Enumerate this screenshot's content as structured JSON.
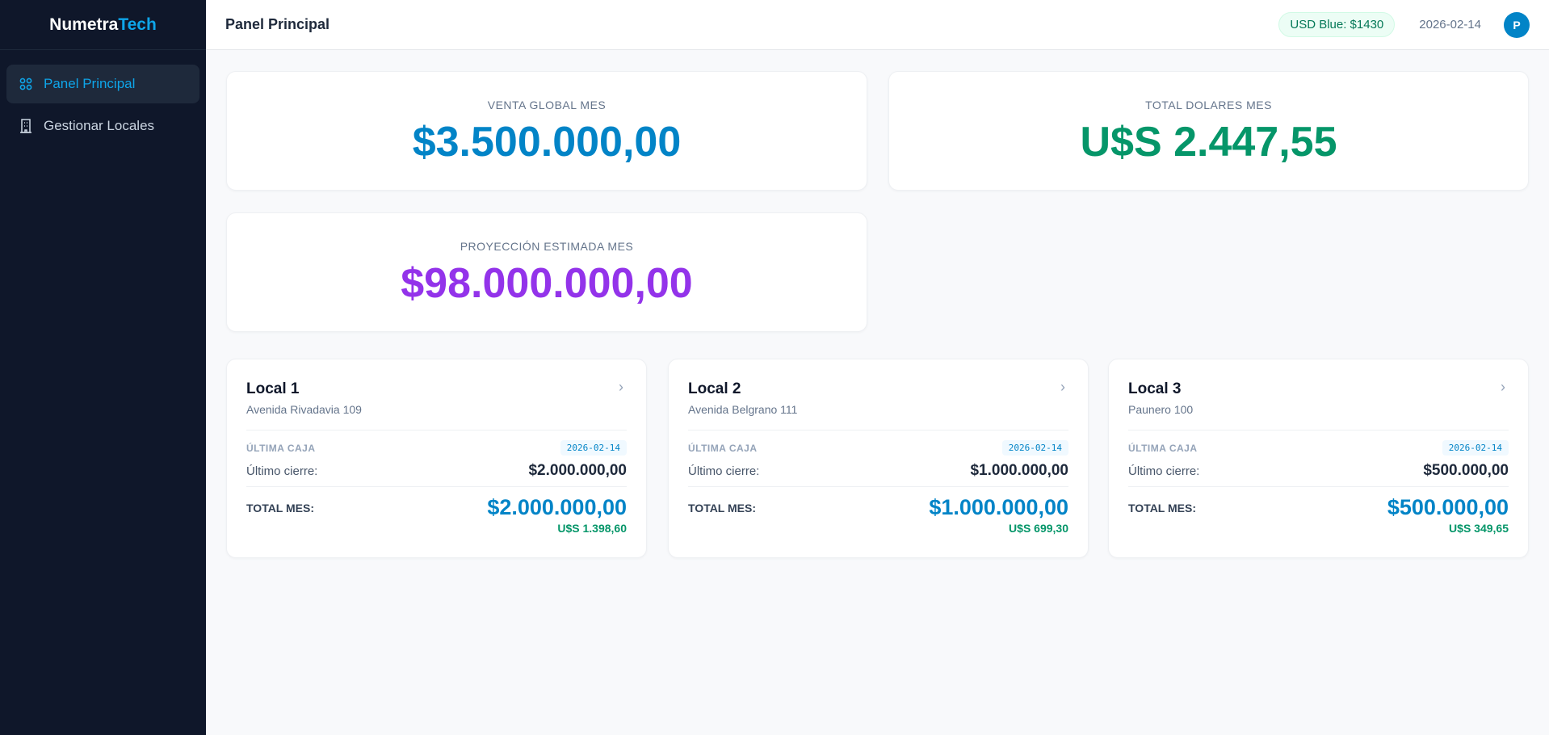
{
  "brand": {
    "part1": "Numetra",
    "part2": "Tech"
  },
  "sidebar": {
    "items": [
      {
        "label": "Panel Principal",
        "icon": "grid-icon",
        "active": true
      },
      {
        "label": "Gestionar Locales",
        "icon": "building-icon",
        "active": false
      }
    ]
  },
  "header": {
    "title": "Panel Principal",
    "usd_badge": "USD Blue: $1430",
    "date": "2026-02-14",
    "avatar": "P"
  },
  "stats": [
    {
      "label": "VENTA GLOBAL MES",
      "value": "$3.500.000,00",
      "color": "#0284c7"
    },
    {
      "label": "TOTAL DOLARES MES",
      "value": "U$S 2.447,55",
      "color": "#059669"
    },
    {
      "label": "PROYECCIÓN ESTIMADA MES",
      "value": "$98.000.000,00",
      "color": "#9333ea"
    }
  ],
  "locales": [
    {
      "name": "Local 1",
      "address": "Avenida Rivadavia 109",
      "ultima_caja_label": "ÚLTIMA CAJA",
      "date": "2026-02-14",
      "cierre_label": "Último cierre:",
      "cierre": "$2.000.000,00",
      "total_label": "TOTAL MES:",
      "total": "$2.000.000,00",
      "total_usd": "U$S 1.398,60"
    },
    {
      "name": "Local 2",
      "address": "Avenida Belgrano 111",
      "ultima_caja_label": "ÚLTIMA CAJA",
      "date": "2026-02-14",
      "cierre_label": "Último cierre:",
      "cierre": "$1.000.000,00",
      "total_label": "TOTAL MES:",
      "total": "$1.000.000,00",
      "total_usd": "U$S 699,30"
    },
    {
      "name": "Local 3",
      "address": "Paunero 100",
      "ultima_caja_label": "ÚLTIMA CAJA",
      "date": "2026-02-14",
      "cierre_label": "Último cierre:",
      "cierre": "$500.000,00",
      "total_label": "TOTAL MES:",
      "total": "$500.000,00",
      "total_usd": "U$S 349,65"
    }
  ]
}
